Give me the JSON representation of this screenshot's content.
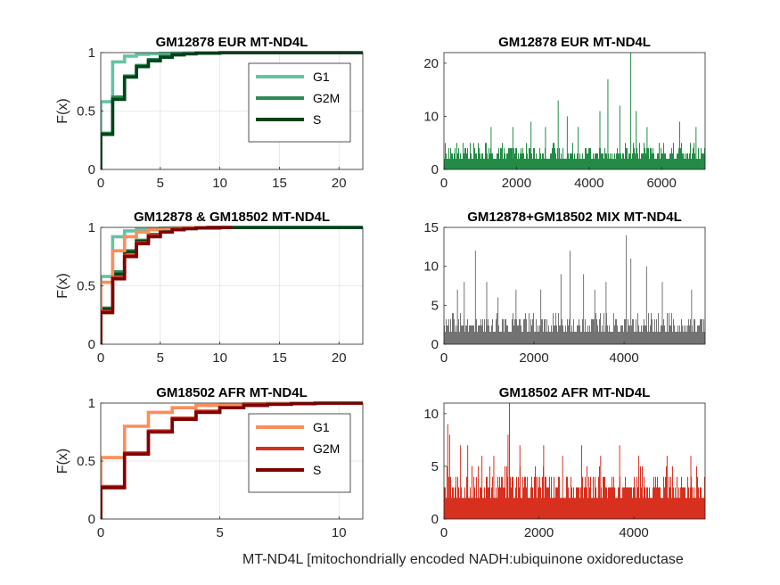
{
  "figure_xlabel": "MT-ND4L [mitochondrially encoded NADH:ubiquinone oxidoreductase",
  "chart_data": [
    {
      "id": "cdf-eur",
      "type": "line",
      "title": "GM12878 EUR MT-ND4L",
      "ylabel": "F(x)",
      "xlim": [
        0,
        22
      ],
      "ylim": [
        0,
        1
      ],
      "xticks": [
        0,
        5,
        10,
        15,
        20
      ],
      "yticks": [
        0,
        0.5,
        1
      ],
      "grid": true,
      "legend": "upper-right",
      "series": [
        {
          "name": "G1",
          "color": "#66c2a4",
          "x": [
            0,
            1,
            2,
            3,
            4,
            5,
            6,
            7,
            8,
            10,
            22
          ],
          "y": [
            0.58,
            0.92,
            0.97,
            0.985,
            0.99,
            0.995,
            0.997,
            0.998,
            0.999,
            1,
            1
          ]
        },
        {
          "name": "G2M",
          "color": "#2e8b57",
          "x": [
            0,
            1,
            2,
            3,
            4,
            5,
            6,
            7,
            8,
            10,
            22
          ],
          "y": [
            0.31,
            0.62,
            0.8,
            0.89,
            0.94,
            0.97,
            0.985,
            0.99,
            0.995,
            0.999,
            1
          ]
        },
        {
          "name": "S",
          "color": "#00441b",
          "x": [
            0,
            1,
            2,
            3,
            4,
            5,
            6,
            7,
            8,
            10,
            22
          ],
          "y": [
            0.3,
            0.6,
            0.79,
            0.88,
            0.93,
            0.96,
            0.98,
            0.99,
            0.995,
            0.999,
            1
          ]
        }
      ]
    },
    {
      "id": "hist-eur",
      "type": "bar",
      "title": "GM12878 EUR MT-ND4L",
      "xlim": [
        0,
        7200
      ],
      "ylim": [
        0,
        22
      ],
      "xticks": [
        0,
        2000,
        4000,
        6000
      ],
      "yticks": [
        0,
        10,
        20
      ],
      "color": "#238b45",
      "n": 7200,
      "base_max": 5,
      "spikes": [
        [
          1300,
          8
        ],
        [
          1900,
          8
        ],
        [
          2400,
          9
        ],
        [
          2800,
          8
        ],
        [
          3150,
          13
        ],
        [
          3400,
          10
        ],
        [
          3700,
          8
        ],
        [
          4300,
          11
        ],
        [
          4520,
          17
        ],
        [
          4850,
          12
        ],
        [
          5150,
          22
        ],
        [
          5300,
          11
        ],
        [
          5600,
          8
        ],
        [
          6500,
          9
        ],
        [
          6950,
          8
        ]
      ]
    },
    {
      "id": "cdf-mix",
      "type": "line",
      "title": "GM12878 & GM18502 MT-ND4L",
      "ylabel": "F(x)",
      "xlim": [
        0,
        22
      ],
      "ylim": [
        0,
        1
      ],
      "xticks": [
        0,
        5,
        10,
        15,
        20
      ],
      "yticks": [
        0,
        0.5,
        1
      ],
      "grid": true,
      "series": [
        {
          "color": "#66c2a4",
          "x": [
            0,
            1,
            2,
            3,
            4,
            5,
            6,
            7,
            8,
            10,
            22
          ],
          "y": [
            0.58,
            0.92,
            0.97,
            0.985,
            0.99,
            0.995,
            0.997,
            0.998,
            0.999,
            1,
            1
          ]
        },
        {
          "color": "#2e8b57",
          "x": [
            0,
            1,
            2,
            3,
            4,
            5,
            6,
            7,
            8,
            10,
            22
          ],
          "y": [
            0.31,
            0.62,
            0.8,
            0.89,
            0.94,
            0.97,
            0.985,
            0.99,
            0.995,
            0.999,
            1
          ]
        },
        {
          "color": "#00441b",
          "x": [
            0,
            1,
            2,
            3,
            4,
            5,
            6,
            7,
            8,
            10,
            22
          ],
          "y": [
            0.3,
            0.6,
            0.79,
            0.88,
            0.93,
            0.96,
            0.98,
            0.99,
            0.995,
            0.999,
            1
          ]
        },
        {
          "color": "#fc8d59",
          "x": [
            0,
            1,
            2,
            3,
            4,
            5,
            6,
            7,
            8,
            9,
            11
          ],
          "y": [
            0.53,
            0.8,
            0.92,
            0.96,
            0.98,
            0.99,
            0.995,
            0.998,
            0.999,
            1,
            1
          ]
        },
        {
          "color": "#d7301f",
          "x": [
            0,
            1,
            2,
            3,
            4,
            5,
            6,
            7,
            8,
            9,
            11
          ],
          "y": [
            0.28,
            0.57,
            0.76,
            0.87,
            0.93,
            0.96,
            0.98,
            0.99,
            0.995,
            0.999,
            1
          ]
        },
        {
          "color": "#7f0000",
          "x": [
            0,
            1,
            2,
            3,
            4,
            5,
            6,
            7,
            8,
            9,
            11
          ],
          "y": [
            0.27,
            0.56,
            0.75,
            0.86,
            0.92,
            0.96,
            0.98,
            0.99,
            0.995,
            0.999,
            1
          ]
        }
      ]
    },
    {
      "id": "hist-mix",
      "type": "bar",
      "title": "GM12878+GM18502 MIX MT-ND4L",
      "xlim": [
        0,
        5800
      ],
      "ylim": [
        0,
        15
      ],
      "xticks": [
        0,
        2000,
        4000
      ],
      "yticks": [
        0,
        5,
        10,
        15
      ],
      "color": "#737373",
      "n": 5800,
      "base_max": 4,
      "spikes": [
        [
          300,
          7
        ],
        [
          450,
          8
        ],
        [
          700,
          12
        ],
        [
          950,
          8
        ],
        [
          1200,
          6
        ],
        [
          1600,
          7
        ],
        [
          2150,
          7
        ],
        [
          2600,
          9
        ],
        [
          2800,
          12
        ],
        [
          3100,
          9
        ],
        [
          3350,
          7
        ],
        [
          3600,
          8
        ],
        [
          4050,
          14
        ],
        [
          4150,
          11
        ],
        [
          4500,
          10
        ],
        [
          4850,
          8
        ],
        [
          5500,
          7
        ]
      ]
    },
    {
      "id": "cdf-afr",
      "type": "line",
      "title": "GM18502 AFR MT-ND4L",
      "ylabel": "F(x)",
      "xlim": [
        0,
        11
      ],
      "ylim": [
        0,
        1
      ],
      "xticks": [
        0,
        5,
        10
      ],
      "yticks": [
        0,
        0.5,
        1
      ],
      "grid": true,
      "legend": "upper-right",
      "series": [
        {
          "name": "G1",
          "color": "#fc8d59",
          "x": [
            0,
            1,
            2,
            3,
            4,
            5,
            6,
            7,
            8,
            9,
            11
          ],
          "y": [
            0.53,
            0.8,
            0.92,
            0.96,
            0.98,
            0.99,
            0.995,
            0.998,
            0.999,
            1,
            1
          ]
        },
        {
          "name": "G2M",
          "color": "#d7301f",
          "x": [
            0,
            1,
            2,
            3,
            4,
            5,
            6,
            7,
            8,
            9,
            11
          ],
          "y": [
            0.28,
            0.57,
            0.76,
            0.87,
            0.93,
            0.96,
            0.98,
            0.99,
            0.995,
            0.999,
            1
          ]
        },
        {
          "name": "S",
          "color": "#7f0000",
          "x": [
            0,
            1,
            2,
            3,
            4,
            5,
            6,
            7,
            8,
            9,
            11
          ],
          "y": [
            0.27,
            0.56,
            0.75,
            0.86,
            0.92,
            0.96,
            0.98,
            0.99,
            0.995,
            0.999,
            1
          ]
        }
      ]
    },
    {
      "id": "hist-afr",
      "type": "bar",
      "title": "GM18502 AFR MT-ND4L",
      "xlim": [
        0,
        5500
      ],
      "ylim": [
        0,
        11
      ],
      "xticks": [
        0,
        2000,
        4000
      ],
      "yticks": [
        0,
        5,
        10
      ],
      "color": "#d7301f",
      "n": 5500,
      "base_max": 5,
      "spikes": [
        [
          80,
          9
        ],
        [
          120,
          8
        ],
        [
          350,
          7
        ],
        [
          500,
          7
        ],
        [
          800,
          6
        ],
        [
          1050,
          6
        ],
        [
          1350,
          8
        ],
        [
          1380,
          11
        ],
        [
          1600,
          7
        ],
        [
          2100,
          7
        ],
        [
          2500,
          6
        ],
        [
          2900,
          7
        ],
        [
          3300,
          6
        ],
        [
          3700,
          7
        ],
        [
          4100,
          6
        ],
        [
          4700,
          6
        ],
        [
          5200,
          6
        ]
      ]
    }
  ]
}
